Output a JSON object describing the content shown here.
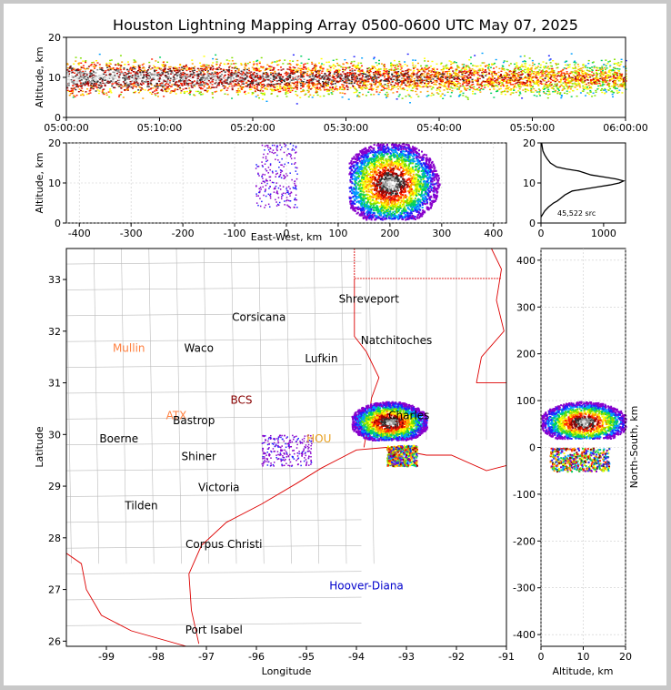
{
  "title": "Houston Lightning Mapping Array 0500-0600 UTC May 07, 2025",
  "colors": {
    "density_scale": [
      "#8800cc",
      "#2020ff",
      "#00a0ff",
      "#00d060",
      "#80e000",
      "#ffff00",
      "#ffa000",
      "#ff2000",
      "#a00000",
      "#303030",
      "#909090",
      "#e0e0e0"
    ],
    "state_border": "#dd0000",
    "county_line": "#bbbbbb"
  },
  "chart_data": [
    {
      "type": "heatmap",
      "name": "altitude-time",
      "xlabel": "",
      "ylabel": "Altitude, km",
      "xlim": [
        "05:00:00",
        "06:00:00"
      ],
      "ylim": [
        0,
        20
      ],
      "xticks": [
        "05:00:00",
        "05:10:00",
        "05:20:00",
        "05:30:00",
        "05:40:00",
        "05:50:00",
        "06:00:00"
      ],
      "yticks": [
        0,
        10,
        20
      ]
    },
    {
      "type": "heatmap",
      "name": "altitude-east-west",
      "xlabel": "East-West, km",
      "ylabel": "Altitude, km",
      "xlim": [
        -425,
        425
      ],
      "ylim": [
        0,
        20
      ],
      "xticks": [
        -400,
        -300,
        -200,
        -100,
        0,
        100,
        200,
        300,
        400
      ],
      "yticks": [
        0,
        10,
        20
      ],
      "clusters": [
        {
          "x": [
            -60,
            20
          ],
          "y": [
            4,
            20
          ],
          "density": "sparse"
        },
        {
          "x": [
            120,
            300
          ],
          "y": [
            1,
            20
          ],
          "density": "dense",
          "core_x": 200,
          "core_y": 10
        }
      ]
    },
    {
      "type": "line",
      "name": "altitude-histogram",
      "xlabel": "",
      "ylabel": "",
      "xlim": [
        0,
        1350
      ],
      "ylim": [
        0,
        20
      ],
      "xticks": [
        0,
        1000
      ],
      "yticks": [
        0,
        10,
        20
      ],
      "annotation": "45,522 src",
      "x": [
        0,
        20,
        60,
        120,
        200,
        260,
        300,
        380,
        500,
        700,
        900,
        1100,
        1250,
        1320,
        1200,
        1000,
        800,
        600,
        400,
        250,
        150,
        100,
        60,
        30,
        10
      ],
      "y": [
        1.5,
        2,
        3,
        4,
        5,
        5.5,
        6,
        7,
        8,
        8.5,
        9,
        9.5,
        10,
        10.5,
        11,
        11.5,
        12,
        13,
        13.5,
        14,
        15,
        16,
        17,
        18,
        20
      ]
    },
    {
      "type": "scatter",
      "name": "plan-view",
      "xlabel": "Longitude",
      "ylabel": "Latitude",
      "xlim": [
        -99.8,
        -91
      ],
      "ylim": [
        25.9,
        33.6
      ],
      "xticks": [
        -99,
        -98,
        -97,
        -96,
        -95,
        -94,
        -93,
        -92,
        -91
      ],
      "yticks": [
        26,
        27,
        28,
        29,
        30,
        31,
        32,
        33
      ],
      "clusters": [
        {
          "lon": [
            -94.1,
            -92.6
          ],
          "lat": [
            29.9,
            30.65
          ],
          "density": "dense"
        },
        {
          "lon": [
            -93.4,
            -92.8
          ],
          "lat": [
            29.4,
            29.8
          ],
          "density": "medium"
        },
        {
          "lon": [
            -95.9,
            -94.9
          ],
          "lat": [
            29.4,
            30.0
          ],
          "density": "sparse"
        }
      ],
      "places": [
        {
          "name": "Shreveport",
          "lon": -93.75,
          "lat": 32.55,
          "color": "#000000"
        },
        {
          "name": "Corsicana",
          "lon": -95.95,
          "lat": 32.2,
          "color": "#000000"
        },
        {
          "name": "Natchitoches",
          "lon": -93.2,
          "lat": 31.75,
          "color": "#000000"
        },
        {
          "name": "Mullin",
          "lon": -98.55,
          "lat": 31.6,
          "color": "#ff8040"
        },
        {
          "name": "Waco",
          "lon": -97.15,
          "lat": 31.6,
          "color": "#000000"
        },
        {
          "name": "Lufkin",
          "lon": -94.7,
          "lat": 31.4,
          "color": "#000000"
        },
        {
          "name": "BCS",
          "lon": -96.3,
          "lat": 30.6,
          "color": "#880000"
        },
        {
          "name": "ATX",
          "lon": -97.6,
          "lat": 30.3,
          "color": "#ff8040"
        },
        {
          "name": "Bastrop",
          "lon": -97.25,
          "lat": 30.2,
          "color": "#000000"
        },
        {
          "name": "Charles",
          "lon": -92.95,
          "lat": 30.3,
          "color": "#000000"
        },
        {
          "name": "HOU",
          "lon": -94.75,
          "lat": 29.85,
          "color": "#e8a020"
        },
        {
          "name": "Boerne",
          "lon": -98.75,
          "lat": 29.85,
          "color": "#000000"
        },
        {
          "name": "Shiner",
          "lon": -97.15,
          "lat": 29.5,
          "color": "#000000"
        },
        {
          "name": "Victoria",
          "lon": -96.75,
          "lat": 28.9,
          "color": "#000000"
        },
        {
          "name": "Tilden",
          "lon": -98.3,
          "lat": 28.55,
          "color": "#000000"
        },
        {
          "name": "Corpus Christi",
          "lon": -96.65,
          "lat": 27.8,
          "color": "#000000"
        },
        {
          "name": "Hoover-Diana",
          "lon": -93.8,
          "lat": 27.0,
          "color": "#0000cc"
        },
        {
          "name": "Port Isabel",
          "lon": -96.85,
          "lat": 26.15,
          "color": "#000000"
        }
      ]
    },
    {
      "type": "heatmap",
      "name": "north-south-altitude",
      "xlabel": "Altitude, km",
      "ylabel": "North-South, km",
      "xlim": [
        0,
        20
      ],
      "ylim": [
        -425,
        425
      ],
      "xticks": [
        0,
        10,
        20
      ],
      "yticks": [
        -400,
        -300,
        -200,
        -100,
        0,
        100,
        200,
        300,
        400
      ],
      "clusters": [
        {
          "x": [
            0,
            20
          ],
          "y": [
            20,
            100
          ],
          "density": "dense",
          "core_x": 10,
          "core_y": 55
        },
        {
          "x": [
            2,
            16
          ],
          "y": [
            -50,
            0
          ],
          "density": "medium"
        }
      ]
    }
  ]
}
